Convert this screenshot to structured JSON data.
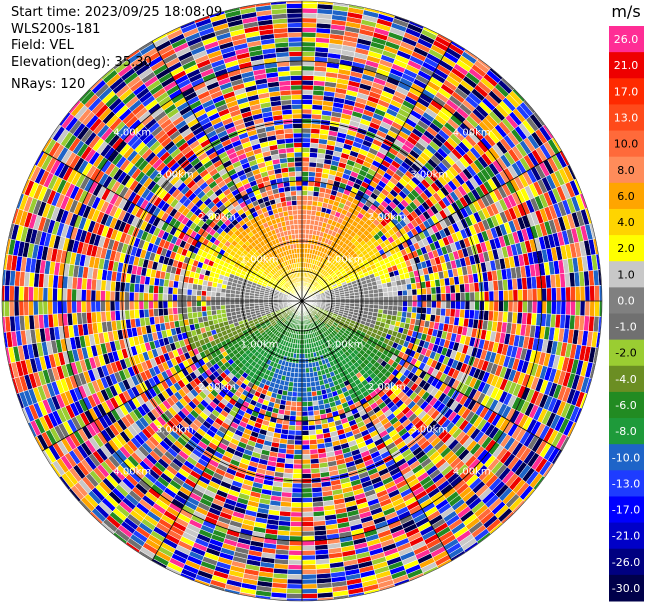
{
  "header": {
    "start_time": "Start time: 2023/09/25 18:08:09",
    "instrument": "WLS200s-181",
    "field": "Field: VEL",
    "elevation": "Elevation(deg): 35.30",
    "nrays": "NRays: 120"
  },
  "colorbar": {
    "unit": "m/s",
    "labels": [
      "26.0",
      "21.0",
      "17.0",
      "13.0",
      "10.0",
      "8.0",
      "6.0",
      "4.0",
      "2.0",
      "1.0",
      "0.0",
      "-1.0",
      "-2.0",
      "-4.0",
      "-6.0",
      "-8.0",
      "-10.0",
      "-13.0",
      "-17.0",
      "-21.0",
      "-26.0",
      "-30.0"
    ],
    "colors": [
      "#ff2d95",
      "#ee0000",
      "#ff2a00",
      "#ff4a1a",
      "#ff6a3a",
      "#ff8c5a",
      "#ffa500",
      "#ffd400",
      "#ffff00",
      "#c8c8c8",
      "#808080",
      "#707070",
      "#9acd32",
      "#6b8e23",
      "#228b22",
      "#1e9a3a",
      "#1e64c8",
      "#1e3cff",
      "#0000ff",
      "#0000c8",
      "#000080",
      "#00004a"
    ]
  },
  "chart_data": {
    "type": "ppi",
    "field": "VEL",
    "units": "m/s",
    "nrays": 120,
    "elevation_deg": 35.3,
    "range_ring_labels": [
      "1.00km",
      "2.00km",
      "3.00km",
      "4.00km"
    ],
    "near_field_pattern": {
      "north_sector": "positive velocities (about 4 to 10 m/s, orange)",
      "south_sector": "negative velocities (about -2 to -8 m/s, green to blue)",
      "east_west_band": "near-zero velocities (yellow / gray)",
      "outer_ranges": "noise (random colors)"
    }
  }
}
